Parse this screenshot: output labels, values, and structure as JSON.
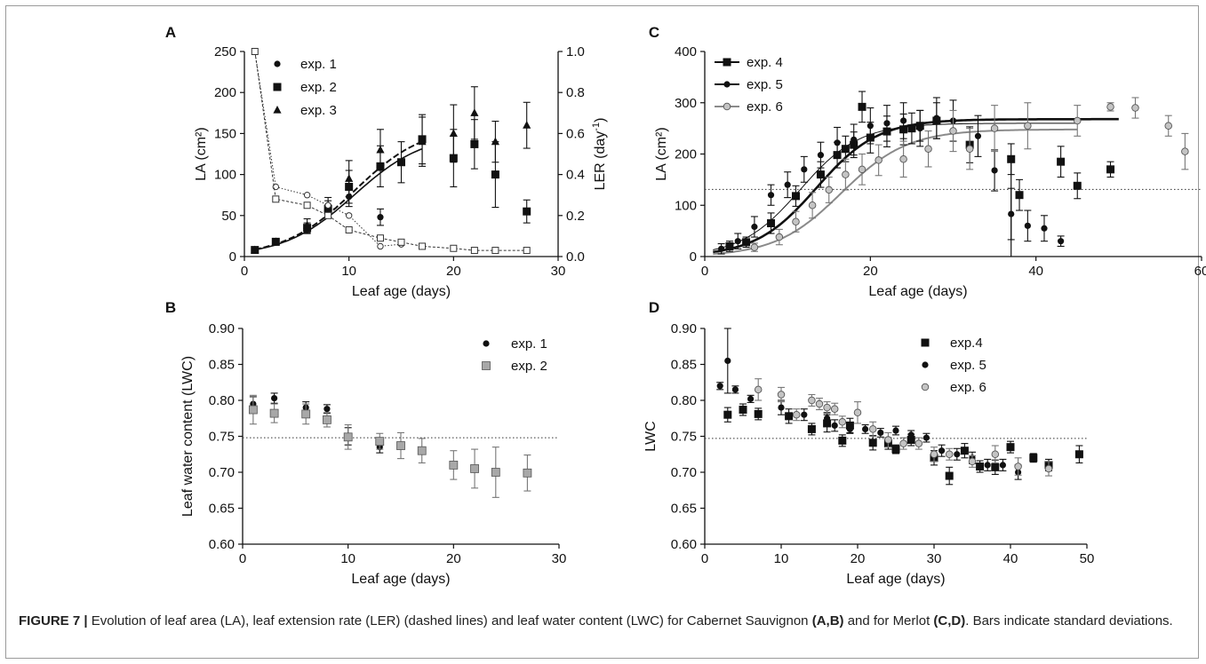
{
  "caption": {
    "label": "FIGURE 7 |",
    "text1": " Evolution of leaf area (LA), leaf extension rate (LER) (dashed lines) and leaf water content (LWC) for Cabernet Sauvignon ",
    "bold1": "(A,B)",
    "text2": " and for Merlot ",
    "bold2": "(C,D)",
    "text3": ". Bars indicate standard deviations."
  },
  "chart_data": [
    {
      "panel": "A",
      "type": "scatter",
      "xlabel": "Leaf age (days)",
      "ylabel": "LA (cm²)",
      "y2label": "LER (day-1)",
      "xlim": [
        0,
        30
      ],
      "ylim": [
        0,
        250
      ],
      "y2lim": [
        0,
        1.0
      ],
      "xticks": [
        "0",
        "10",
        "20",
        "30"
      ],
      "yticks": [
        "0",
        "50",
        "100",
        "150",
        "200",
        "250"
      ],
      "y2ticks": [
        "0.0",
        "0.2",
        "0.4",
        "0.6",
        "0.8",
        "1.0"
      ],
      "legend_position": "top-left",
      "series": [
        {
          "name": "exp. 1",
          "marker": "circle",
          "x": [
            1,
            3,
            6,
            8,
            10,
            13
          ],
          "y": [
            8,
            17,
            33,
            55,
            73,
            48
          ],
          "err": [
            2,
            3,
            5,
            8,
            12,
            10
          ]
        },
        {
          "name": "exp. 2",
          "marker": "square",
          "x": [
            1,
            3,
            6,
            8,
            10,
            13,
            15,
            17,
            20,
            22,
            24,
            27
          ],
          "y": [
            8,
            18,
            35,
            58,
            85,
            110,
            115,
            143,
            120,
            137,
            100,
            55
          ],
          "err": [
            2,
            3,
            6,
            10,
            20,
            25,
            25,
            30,
            35,
            30,
            40,
            14
          ]
        },
        {
          "name": "exp. 3",
          "marker": "triangle",
          "x": [
            1,
            3,
            6,
            8,
            10,
            13,
            17,
            20,
            22,
            24,
            27
          ],
          "y": [
            8,
            18,
            38,
            60,
            95,
            130,
            140,
            150,
            175,
            140,
            160
          ],
          "err": [
            2,
            4,
            8,
            12,
            22,
            25,
            30,
            35,
            32,
            25,
            28
          ]
        },
        {
          "name": "LER",
          "axis": "right",
          "marker": "open-circle",
          "x": [
            1,
            3,
            6,
            8,
            10,
            13,
            15
          ],
          "y": [
            1.0,
            0.34,
            0.3,
            0.25,
            0.2,
            0.05,
            0.06
          ]
        },
        {
          "name": "LER",
          "axis": "right",
          "marker": "open-square",
          "x": [
            1,
            3,
            6,
            8,
            10,
            13,
            15,
            17,
            20,
            22,
            24,
            27
          ],
          "y": [
            1.0,
            0.28,
            0.25,
            0.2,
            0.13,
            0.09,
            0.07,
            0.05,
            0.04,
            0.03,
            0.03,
            0.03
          ]
        }
      ],
      "fit_curves": [
        {
          "style": "solid",
          "K": 150,
          "x0": 10.5,
          "k": 0.3,
          "xmax": 17
        },
        {
          "style": "dashed",
          "K": 160,
          "x0": 10.5,
          "k": 0.3,
          "xmax": 17
        }
      ]
    },
    {
      "panel": "B",
      "type": "scatter",
      "xlabel": "Leaf age (days)",
      "ylabel": "Leaf water content (LWC)",
      "xlim": [
        0,
        30
      ],
      "ylim": [
        0.6,
        0.9
      ],
      "xticks": [
        "0",
        "10",
        "20",
        "30"
      ],
      "yticks": [
        "0.60",
        "0.65",
        "0.70",
        "0.75",
        "0.80",
        "0.85",
        "0.90"
      ],
      "reference_line": 0.748,
      "legend_position": "top-right",
      "series": [
        {
          "name": "exp. 1",
          "marker": "circle",
          "x": [
            1,
            3,
            6,
            8,
            10,
            13
          ],
          "y": [
            0.795,
            0.803,
            0.79,
            0.788,
            0.75,
            0.735
          ],
          "err": [
            0.01,
            0.007,
            0.008,
            0.006,
            0.012,
            0.008
          ]
        },
        {
          "name": "exp. 2",
          "marker": "grey-square",
          "x": [
            1,
            3,
            6,
            8,
            10,
            13,
            15,
            17,
            20,
            22,
            24,
            27
          ],
          "y": [
            0.787,
            0.782,
            0.781,
            0.773,
            0.749,
            0.743,
            0.737,
            0.73,
            0.71,
            0.705,
            0.7,
            0.699
          ],
          "err": [
            0.02,
            0.013,
            0.014,
            0.01,
            0.017,
            0.011,
            0.018,
            0.017,
            0.02,
            0.027,
            0.035,
            0.025
          ]
        }
      ]
    },
    {
      "panel": "C",
      "type": "scatter",
      "xlabel": "Leaf age (days)",
      "ylabel": "LA (cm²)",
      "xlim": [
        0,
        60
      ],
      "ylim": [
        0,
        400
      ],
      "xticks": [
        "0",
        "20",
        "40",
        "60"
      ],
      "yticks": [
        "0",
        "100",
        "200",
        "300",
        "400"
      ],
      "reference_line": 131,
      "legend_position": "top-left",
      "series": [
        {
          "name": "exp. 4",
          "marker": "square",
          "x": [
            3,
            5,
            8,
            11,
            14,
            16,
            17,
            18,
            19,
            20,
            22,
            24,
            25,
            26,
            28,
            32,
            37,
            38,
            43,
            45,
            49
          ],
          "y": [
            20,
            28,
            65,
            118,
            160,
            198,
            210,
            218,
            292,
            232,
            244,
            248,
            250,
            255,
            265,
            218,
            190,
            120,
            185,
            138,
            170
          ],
          "err": [
            10,
            10,
            20,
            20,
            25,
            25,
            25,
            25,
            30,
            30,
            30,
            30,
            30,
            30,
            35,
            35,
            30,
            30,
            30,
            25,
            15
          ]
        },
        {
          "name": "exp. 5",
          "marker": "circle",
          "x": [
            2,
            4,
            6,
            8,
            10,
            12,
            14,
            16,
            18,
            20,
            22,
            24,
            26,
            28,
            30,
            33,
            35,
            37,
            39,
            41,
            43
          ],
          "y": [
            15,
            30,
            58,
            120,
            140,
            170,
            198,
            222,
            228,
            255,
            260,
            265,
            250,
            270,
            265,
            235,
            168,
            83,
            60,
            55,
            30
          ],
          "err": [
            10,
            15,
            20,
            20,
            25,
            25,
            25,
            30,
            30,
            35,
            35,
            35,
            35,
            40,
            40,
            40,
            40,
            50,
            30,
            25,
            10
          ]
        },
        {
          "name": "exp. 6",
          "marker": "grey-circle",
          "x": [
            6,
            9,
            11,
            13,
            15,
            17,
            19,
            21,
            24,
            27,
            30,
            32,
            35,
            39,
            45,
            49,
            52,
            56,
            58
          ],
          "y": [
            18,
            38,
            68,
            100,
            130,
            160,
            170,
            188,
            190,
            210,
            245,
            210,
            250,
            255,
            265,
            292,
            290,
            255,
            205
          ],
          "err": [
            8,
            15,
            20,
            25,
            25,
            30,
            30,
            30,
            35,
            35,
            40,
            40,
            45,
            45,
            30,
            8,
            20,
            20,
            35
          ]
        }
      ],
      "fit_curves": [
        {
          "style": "thin",
          "K": 260,
          "x0": 11.5,
          "k": 0.28,
          "xmax": 45
        },
        {
          "style": "thick",
          "K": 268,
          "x0": 13.5,
          "k": 0.27,
          "xmax": 50
        },
        {
          "style": "grey",
          "K": 248,
          "x0": 16.5,
          "k": 0.25,
          "xmax": 45
        }
      ]
    },
    {
      "panel": "D",
      "type": "scatter",
      "xlabel": "Leaf age (days)",
      "ylabel": "LWC",
      "xlim": [
        0,
        50
      ],
      "ylim": [
        0.6,
        0.9
      ],
      "xticks": [
        "0",
        "10",
        "20",
        "30",
        "40",
        "50"
      ],
      "yticks": [
        "0.60",
        "0.65",
        "0.70",
        "0.75",
        "0.80",
        "0.85",
        "0.90"
      ],
      "reference_line": 0.747,
      "legend_position": "top-right",
      "series": [
        {
          "name": "exp.4",
          "marker": "square",
          "x": [
            3,
            5,
            7,
            11,
            14,
            16,
            18,
            19,
            22,
            24,
            25,
            27,
            30,
            32,
            34,
            36,
            38,
            40,
            43,
            45,
            49
          ],
          "y": [
            0.78,
            0.787,
            0.781,
            0.778,
            0.76,
            0.768,
            0.744,
            0.765,
            0.741,
            0.74,
            0.732,
            0.745,
            0.72,
            0.695,
            0.73,
            0.708,
            0.707,
            0.735,
            0.72,
            0.71,
            0.725
          ],
          "err": [
            0.01,
            0.008,
            0.008,
            0.01,
            0.008,
            0.012,
            0.008,
            0.01,
            0.01,
            0.008,
            0.006,
            0.008,
            0.01,
            0.012,
            0.01,
            0.008,
            0.01,
            0.008,
            0.006,
            0.008,
            0.012
          ]
        },
        {
          "name": "exp. 5",
          "marker": "circle",
          "x": [
            2,
            3,
            4,
            6,
            10,
            13,
            16,
            17,
            19,
            21,
            23,
            25,
            27,
            29,
            31,
            33,
            35,
            37,
            39,
            41
          ],
          "y": [
            0.82,
            0.855,
            0.815,
            0.802,
            0.79,
            0.78,
            0.775,
            0.765,
            0.76,
            0.76,
            0.755,
            0.758,
            0.752,
            0.748,
            0.73,
            0.725,
            0.72,
            0.71,
            0.71,
            0.7
          ],
          "err": [
            0.005,
            0.045,
            0.005,
            0.005,
            0.01,
            0.008,
            0.008,
            0.008,
            0.006,
            0.006,
            0.006,
            0.006,
            0.006,
            0.006,
            0.008,
            0.008,
            0.008,
            0.008,
            0.008,
            0.01
          ]
        },
        {
          "name": "exp. 6",
          "marker": "grey-circle",
          "x": [
            7,
            10,
            12,
            14,
            15,
            16,
            17,
            18,
            20,
            22,
            24,
            26,
            28,
            30,
            32,
            35,
            38,
            41,
            45
          ],
          "y": [
            0.815,
            0.808,
            0.78,
            0.8,
            0.795,
            0.79,
            0.788,
            0.77,
            0.783,
            0.76,
            0.745,
            0.74,
            0.74,
            0.725,
            0.725,
            0.715,
            0.725,
            0.708,
            0.705
          ],
          "err": [
            0.015,
            0.01,
            0.008,
            0.008,
            0.008,
            0.008,
            0.008,
            0.008,
            0.015,
            0.01,
            0.01,
            0.008,
            0.008,
            0.01,
            0.008,
            0.008,
            0.012,
            0.012,
            0.01
          ]
        }
      ]
    }
  ]
}
